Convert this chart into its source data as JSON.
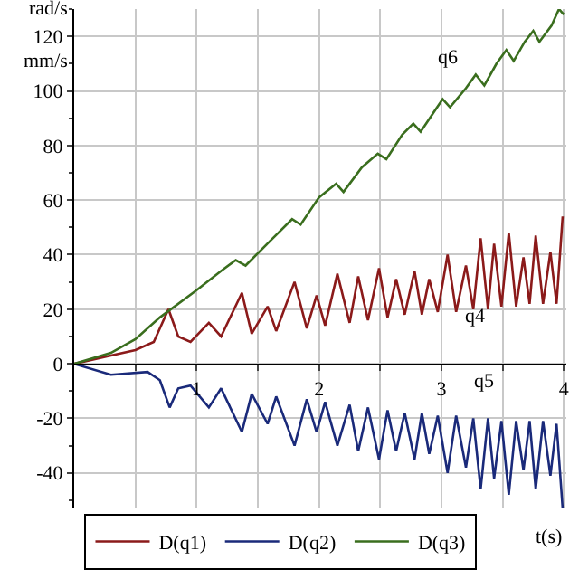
{
  "chart_data": {
    "type": "line",
    "ylabel": "rad/s\nmm/s",
    "xlabel": "t(s)",
    "xlim": [
      0,
      4.02
    ],
    "ylim": [
      -53,
      130
    ],
    "xticks": [
      {
        "value": 0.5,
        "label": null
      },
      1,
      {
        "value": 1.5,
        "label": null
      },
      2,
      {
        "value": 2.5,
        "label": null
      },
      3,
      {
        "value": 3.5,
        "label": null
      },
      4
    ],
    "yticks": [
      -40,
      -20,
      0,
      20,
      40,
      60,
      80,
      100,
      120
    ],
    "grid": true,
    "legend": "bottom",
    "marker": "none",
    "line_style": "solid",
    "annotations": [
      "q6",
      "q4",
      "q5"
    ],
    "series": [
      {
        "name": "D(q1)",
        "color": "#8b1a1a",
        "x": [
          0,
          0.3,
          0.5,
          0.65,
          0.77,
          0.85,
          0.95,
          1.1,
          1.2,
          1.37,
          1.45,
          1.58,
          1.65,
          1.8,
          1.9,
          1.98,
          2.05,
          2.15,
          2.25,
          2.32,
          2.4,
          2.49,
          2.56,
          2.63,
          2.7,
          2.78,
          2.84,
          2.9,
          2.97,
          3.05,
          3.12,
          3.2,
          3.26,
          3.32,
          3.38,
          3.43,
          3.49,
          3.55,
          3.61,
          3.67,
          3.72,
          3.77,
          3.83,
          3.89,
          3.94,
          3.99
        ],
        "values": [
          0,
          3,
          5,
          8,
          20,
          10,
          8,
          15,
          10,
          26,
          11,
          21,
          12,
          30,
          13,
          25,
          14,
          33,
          15,
          32,
          16,
          35,
          17,
          31,
          18,
          34,
          18,
          31,
          19,
          40,
          19,
          36,
          20,
          46,
          20,
          44,
          21,
          48,
          21,
          39,
          22,
          47,
          22,
          41,
          22,
          54
        ]
      },
      {
        "name": "D(q2)",
        "color": "#1a2a7a",
        "x": [
          0,
          0.3,
          0.6,
          0.7,
          0.78,
          0.85,
          0.95,
          1.1,
          1.2,
          1.37,
          1.45,
          1.58,
          1.65,
          1.8,
          1.9,
          1.98,
          2.05,
          2.15,
          2.25,
          2.32,
          2.4,
          2.49,
          2.56,
          2.63,
          2.7,
          2.78,
          2.84,
          2.9,
          2.97,
          3.05,
          3.12,
          3.2,
          3.26,
          3.32,
          3.38,
          3.43,
          3.49,
          3.55,
          3.61,
          3.67,
          3.72,
          3.77,
          3.83,
          3.89,
          3.94,
          3.99
        ],
        "values": [
          0,
          -4,
          -3,
          -6,
          -16,
          -9,
          -8,
          -16,
          -9,
          -25,
          -11,
          -22,
          -12,
          -30,
          -13,
          -25,
          -14,
          -30,
          -15,
          -32,
          -16,
          -35,
          -17,
          -32,
          -18,
          -35,
          -18,
          -33,
          -19,
          -40,
          -19,
          -38,
          -20,
          -46,
          -20,
          -42,
          -21,
          -48,
          -21,
          -39,
          -21,
          -46,
          -21,
          -41,
          -22,
          -53
        ]
      },
      {
        "name": "D(q3)",
        "color": "#3a6e1e",
        "x": [
          0,
          0.3,
          0.5,
          0.7,
          1,
          1.2,
          1.32,
          1.4,
          1.6,
          1.78,
          1.85,
          2.0,
          2.14,
          2.2,
          2.35,
          2.48,
          2.55,
          2.68,
          2.77,
          2.83,
          2.95,
          3.01,
          3.07,
          3.2,
          3.28,
          3.35,
          3.45,
          3.53,
          3.59,
          3.68,
          3.75,
          3.8,
          3.9,
          3.96,
          4.0
        ],
        "values": [
          0,
          4,
          9,
          17,
          27,
          34,
          38,
          36,
          45,
          53,
          51,
          61,
          66,
          63,
          72,
          77,
          75,
          84,
          88,
          85,
          93,
          97,
          94,
          101,
          106,
          102,
          110,
          115,
          111,
          118,
          122,
          118,
          124,
          130,
          128
        ]
      }
    ]
  }
}
